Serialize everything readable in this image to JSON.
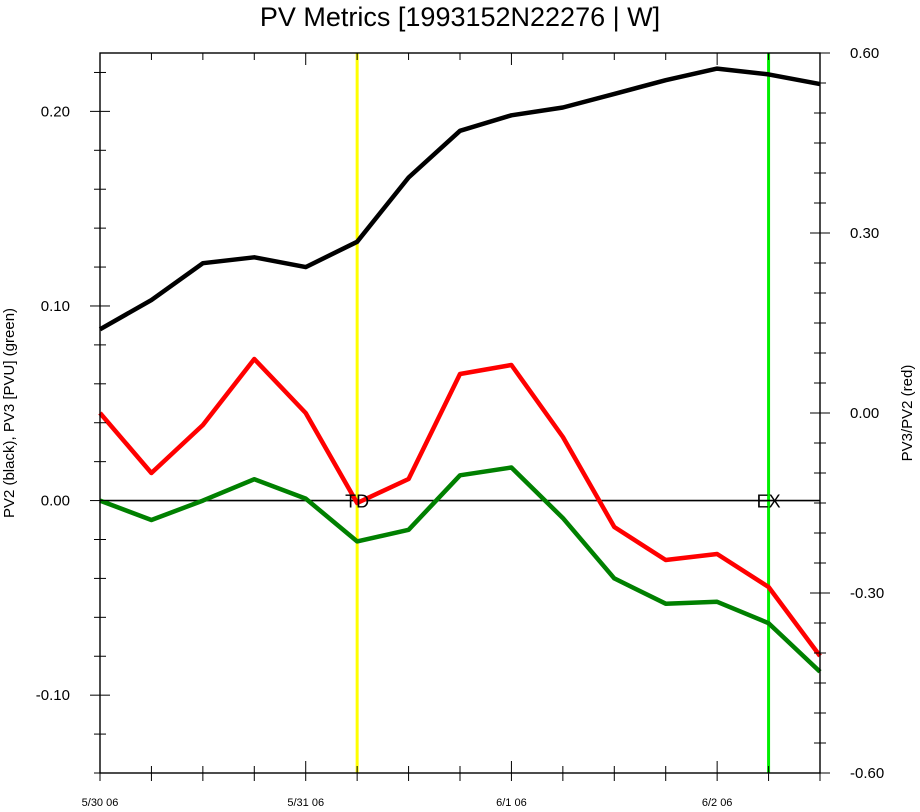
{
  "chart_data": {
    "type": "line",
    "title": "PV Metrics [1993152N22276 | W]",
    "ylabel_left": "PV2 (black), PV3 [PVU] (green)",
    "ylabel_right": "PV3/PV2 (red)",
    "x_tick_labels": [
      {
        "label": "5/30 06",
        "x": 0
      },
      {
        "label": "5/31 06",
        "x": 4
      },
      {
        "label": "6/1 06",
        "x": 8
      },
      {
        "label": "6/2 06",
        "x": 12
      }
    ],
    "xlim": [
      0,
      14
    ],
    "ylim_left": [
      -0.14,
      0.23
    ],
    "ylim_right": [
      -0.6,
      0.6
    ],
    "y_left_ticks": [
      {
        "label": "0.20",
        "v": 0.2
      },
      {
        "label": "0.10",
        "v": 0.1
      },
      {
        "label": "0.00",
        "v": 0.0
      },
      {
        "label": "-0.10",
        "v": -0.1
      }
    ],
    "y_right_ticks": [
      {
        "label": "0.60",
        "v": 0.6
      },
      {
        "label": "0.30",
        "v": 0.3
      },
      {
        "label": "0.00",
        "v": 0.0
      },
      {
        "label": "-0.30",
        "v": -0.3
      },
      {
        "label": "-0.60",
        "v": -0.6
      }
    ],
    "x": [
      0,
      1,
      2,
      3,
      4,
      5,
      6,
      7,
      8,
      9,
      10,
      11,
      12,
      13,
      14
    ],
    "series": [
      {
        "axis": "left",
        "color": "#000000",
        "values": [
          0.088,
          0.103,
          0.122,
          0.125,
          0.12,
          0.133,
          0.166,
          0.19,
          0.198,
          0.202,
          0.209,
          0.216,
          0.222,
          0.219,
          0.214
        ]
      },
      {
        "axis": "left",
        "color": "#008000",
        "values": [
          0.0,
          -0.01,
          0.0,
          0.011,
          0.001,
          -0.021,
          -0.015,
          0.013,
          0.017,
          -0.009,
          -0.04,
          -0.053,
          -0.052,
          -0.063,
          -0.088
        ]
      },
      {
        "axis": "right",
        "color": "#ff0000",
        "values": [
          0.0,
          -0.1,
          -0.02,
          0.09,
          0.0,
          -0.15,
          -0.11,
          0.065,
          0.08,
          -0.04,
          -0.19,
          -0.245,
          -0.235,
          -0.29,
          -0.405
        ]
      }
    ],
    "zero_line": {
      "axis": "left",
      "value": 0.0,
      "color": "#000000"
    },
    "vertical_markers": [
      {
        "label": "TD",
        "x": 5,
        "color": "#ffff00"
      },
      {
        "label": "EX",
        "x": 13,
        "color": "#00ee00"
      }
    ]
  }
}
